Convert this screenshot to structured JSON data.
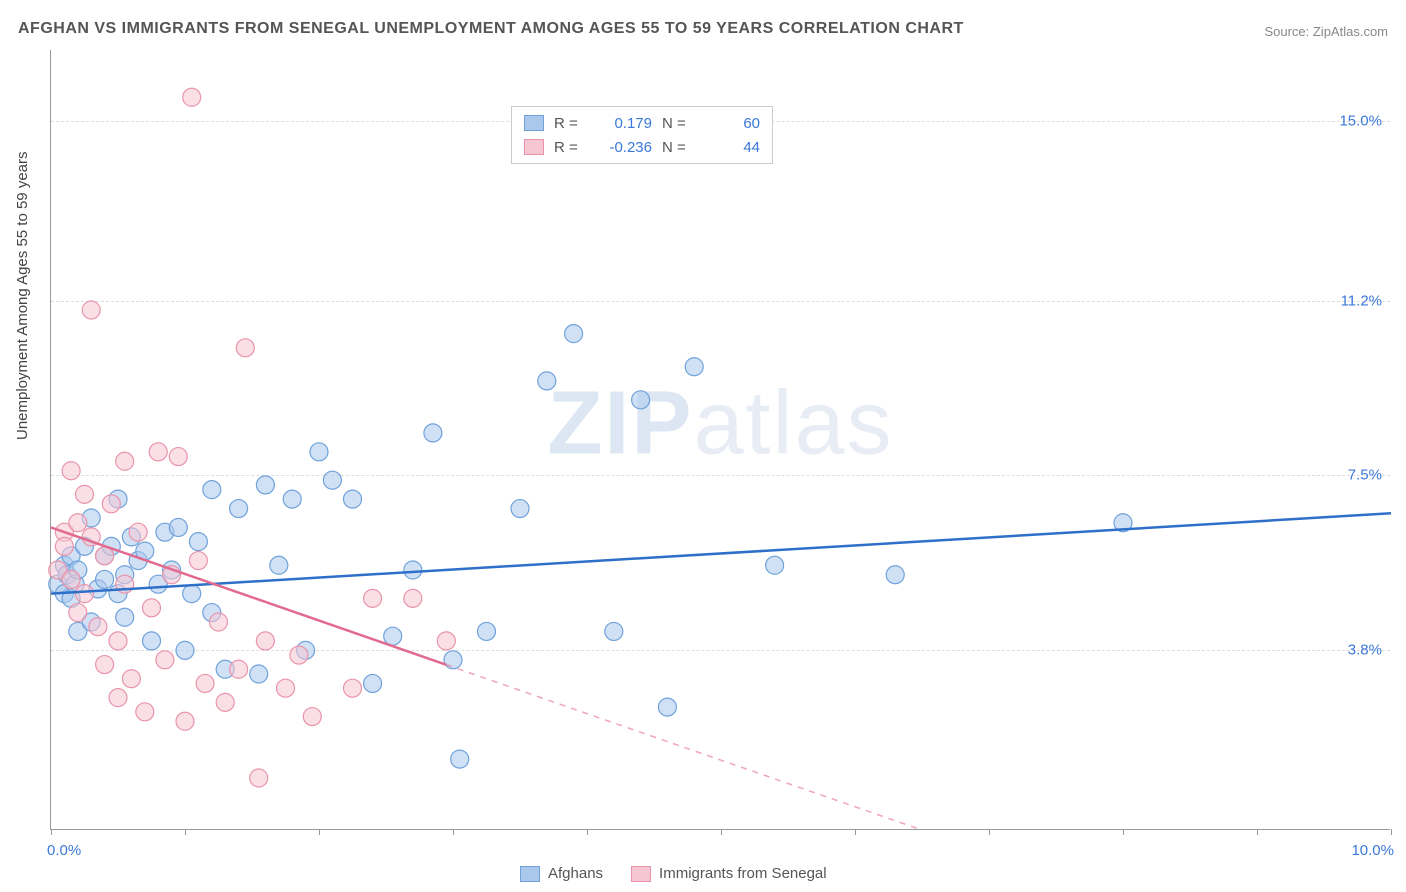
{
  "title": "AFGHAN VS IMMIGRANTS FROM SENEGAL UNEMPLOYMENT AMONG AGES 55 TO 59 YEARS CORRELATION CHART",
  "source": "Source: ZipAtlas.com",
  "y_axis_title": "Unemployment Among Ages 55 to 59 years",
  "watermark_bold": "ZIP",
  "watermark_rest": "atlas",
  "chart": {
    "type": "scatter",
    "background_color": "#ffffff",
    "grid_color": "#dddddd",
    "axis_color": "#999999",
    "xlim": [
      0.0,
      10.0
    ],
    "ylim": [
      0.0,
      16.5
    ],
    "x_min_label": "0.0%",
    "x_max_label": "10.0%",
    "x_label_color": "#3b78d8",
    "x_ticks_count": 11,
    "y_gridlines": [
      {
        "value": 3.8,
        "label": "3.8%"
      },
      {
        "value": 7.5,
        "label": "7.5%"
      },
      {
        "value": 11.2,
        "label": "11.2%"
      },
      {
        "value": 15.0,
        "label": "15.0%"
      }
    ],
    "y_label_color": "#3b78d8",
    "marker_radius": 9,
    "marker_stroke_width": 1.2,
    "line_width": 2.5,
    "series": [
      {
        "id": "afghans",
        "name": "Afghans",
        "fill_color": "#a9c8ec",
        "stroke_color": "#6fa2db",
        "line_color": "#2e6fc9",
        "R": "0.179",
        "N": "60",
        "trend": {
          "x1": 0.0,
          "y1": 5.0,
          "x2": 10.0,
          "y2": 6.7,
          "dash_from_x": 10.0
        },
        "points": [
          [
            0.05,
            5.2
          ],
          [
            0.1,
            5.0
          ],
          [
            0.1,
            5.6
          ],
          [
            0.12,
            5.4
          ],
          [
            0.15,
            4.9
          ],
          [
            0.15,
            5.8
          ],
          [
            0.18,
            5.2
          ],
          [
            0.2,
            5.5
          ],
          [
            0.2,
            4.2
          ],
          [
            0.25,
            6.0
          ],
          [
            0.3,
            6.6
          ],
          [
            0.3,
            4.4
          ],
          [
            0.35,
            5.1
          ],
          [
            0.4,
            5.8
          ],
          [
            0.4,
            5.3
          ],
          [
            0.45,
            6.0
          ],
          [
            0.5,
            5.0
          ],
          [
            0.5,
            7.0
          ],
          [
            0.55,
            5.4
          ],
          [
            0.55,
            4.5
          ],
          [
            0.6,
            6.2
          ],
          [
            0.65,
            5.7
          ],
          [
            0.7,
            5.9
          ],
          [
            0.75,
            4.0
          ],
          [
            0.8,
            5.2
          ],
          [
            0.85,
            6.3
          ],
          [
            0.9,
            5.5
          ],
          [
            0.95,
            6.4
          ],
          [
            1.0,
            3.8
          ],
          [
            1.05,
            5.0
          ],
          [
            1.1,
            6.1
          ],
          [
            1.2,
            4.6
          ],
          [
            1.3,
            3.4
          ],
          [
            1.4,
            6.8
          ],
          [
            1.55,
            3.3
          ],
          [
            1.6,
            7.3
          ],
          [
            1.7,
            5.6
          ],
          [
            1.8,
            7.0
          ],
          [
            1.9,
            3.8
          ],
          [
            2.0,
            8.0
          ],
          [
            2.1,
            7.4
          ],
          [
            2.25,
            7.0
          ],
          [
            2.4,
            3.1
          ],
          [
            2.55,
            4.1
          ],
          [
            2.7,
            5.5
          ],
          [
            2.85,
            8.4
          ],
          [
            3.0,
            3.6
          ],
          [
            3.05,
            1.5
          ],
          [
            3.25,
            4.2
          ],
          [
            3.5,
            6.8
          ],
          [
            3.7,
            9.5
          ],
          [
            3.9,
            10.5
          ],
          [
            4.2,
            4.2
          ],
          [
            4.4,
            9.1
          ],
          [
            4.6,
            2.6
          ],
          [
            4.8,
            9.8
          ],
          [
            5.4,
            5.6
          ],
          [
            6.3,
            5.4
          ],
          [
            8.0,
            6.5
          ],
          [
            1.2,
            7.2
          ]
        ]
      },
      {
        "id": "senegal",
        "name": "Immigrants from Senegal",
        "fill_color": "#f6c6d2",
        "stroke_color": "#e994ab",
        "line_color": "#e26a8e",
        "R": "-0.236",
        "N": "44",
        "trend": {
          "x1": 0.0,
          "y1": 6.4,
          "x2": 6.5,
          "y2": 0.0,
          "dash_from_x": 2.95
        },
        "points": [
          [
            0.05,
            5.5
          ],
          [
            0.1,
            6.3
          ],
          [
            0.1,
            6.0
          ],
          [
            0.15,
            5.3
          ],
          [
            0.15,
            7.6
          ],
          [
            0.2,
            6.5
          ],
          [
            0.2,
            4.6
          ],
          [
            0.25,
            5.0
          ],
          [
            0.25,
            7.1
          ],
          [
            0.3,
            6.2
          ],
          [
            0.3,
            11.0
          ],
          [
            0.35,
            4.3
          ],
          [
            0.4,
            3.5
          ],
          [
            0.4,
            5.8
          ],
          [
            0.45,
            6.9
          ],
          [
            0.5,
            4.0
          ],
          [
            0.5,
            2.8
          ],
          [
            0.55,
            5.2
          ],
          [
            0.55,
            7.8
          ],
          [
            0.6,
            3.2
          ],
          [
            0.65,
            6.3
          ],
          [
            0.7,
            2.5
          ],
          [
            0.75,
            4.7
          ],
          [
            0.8,
            8.0
          ],
          [
            0.85,
            3.6
          ],
          [
            0.9,
            5.4
          ],
          [
            0.95,
            7.9
          ],
          [
            1.0,
            2.3
          ],
          [
            1.05,
            15.5
          ],
          [
            1.1,
            5.7
          ],
          [
            1.15,
            3.1
          ],
          [
            1.25,
            4.4
          ],
          [
            1.3,
            2.7
          ],
          [
            1.4,
            3.4
          ],
          [
            1.45,
            10.2
          ],
          [
            1.55,
            1.1
          ],
          [
            1.6,
            4.0
          ],
          [
            1.75,
            3.0
          ],
          [
            1.85,
            3.7
          ],
          [
            1.95,
            2.4
          ],
          [
            2.25,
            3.0
          ],
          [
            2.4,
            4.9
          ],
          [
            2.7,
            4.9
          ],
          [
            2.95,
            4.0
          ]
        ]
      }
    ]
  },
  "legend_top_labels": {
    "R": "R =",
    "N": "N ="
  },
  "legend_value_color": "#3b78d8"
}
